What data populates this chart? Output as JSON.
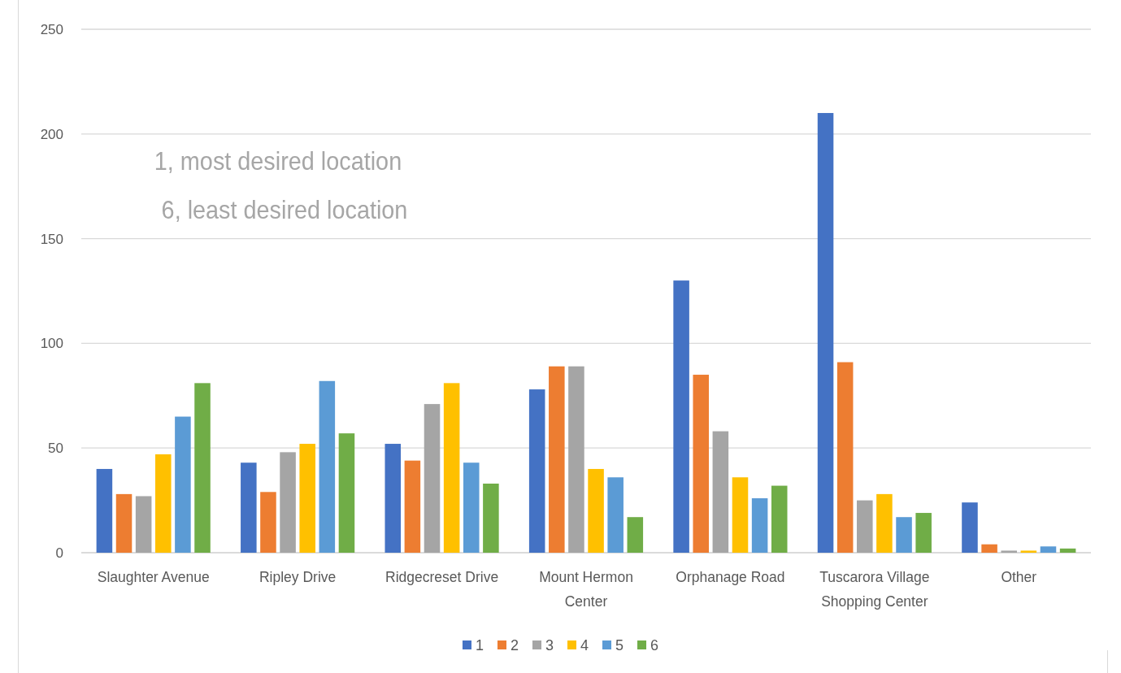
{
  "chart_data": {
    "type": "bar",
    "categories": [
      "Slaughter Avenue",
      "Ripley Drive",
      "Ridgecreset Drive",
      "Mount Hermon Center",
      "Orphanage Road",
      "Tuscarora Village Shopping Center",
      "Other"
    ],
    "series": [
      {
        "name": "1",
        "color": "#4472c4",
        "values": [
          40,
          43,
          52,
          78,
          130,
          210,
          24
        ]
      },
      {
        "name": "2",
        "color": "#ed7d31",
        "values": [
          28,
          29,
          44,
          89,
          85,
          91,
          4
        ]
      },
      {
        "name": "3",
        "color": "#a5a5a5",
        "values": [
          27,
          48,
          71,
          89,
          58,
          25,
          1
        ]
      },
      {
        "name": "4",
        "color": "#ffc000",
        "values": [
          47,
          52,
          81,
          40,
          36,
          28,
          1
        ]
      },
      {
        "name": "5",
        "color": "#5b9bd5",
        "values": [
          65,
          82,
          43,
          36,
          26,
          17,
          3
        ]
      },
      {
        "name": "6",
        "color": "#70ad47",
        "values": [
          81,
          57,
          33,
          17,
          32,
          19,
          2
        ]
      }
    ],
    "ylim": [
      0,
      250
    ],
    "yticks": [
      0,
      50,
      100,
      150,
      200,
      250
    ],
    "grid": true,
    "legend": "bottom",
    "annotations": [
      "1, most desired location",
      "6, least desired location"
    ]
  }
}
